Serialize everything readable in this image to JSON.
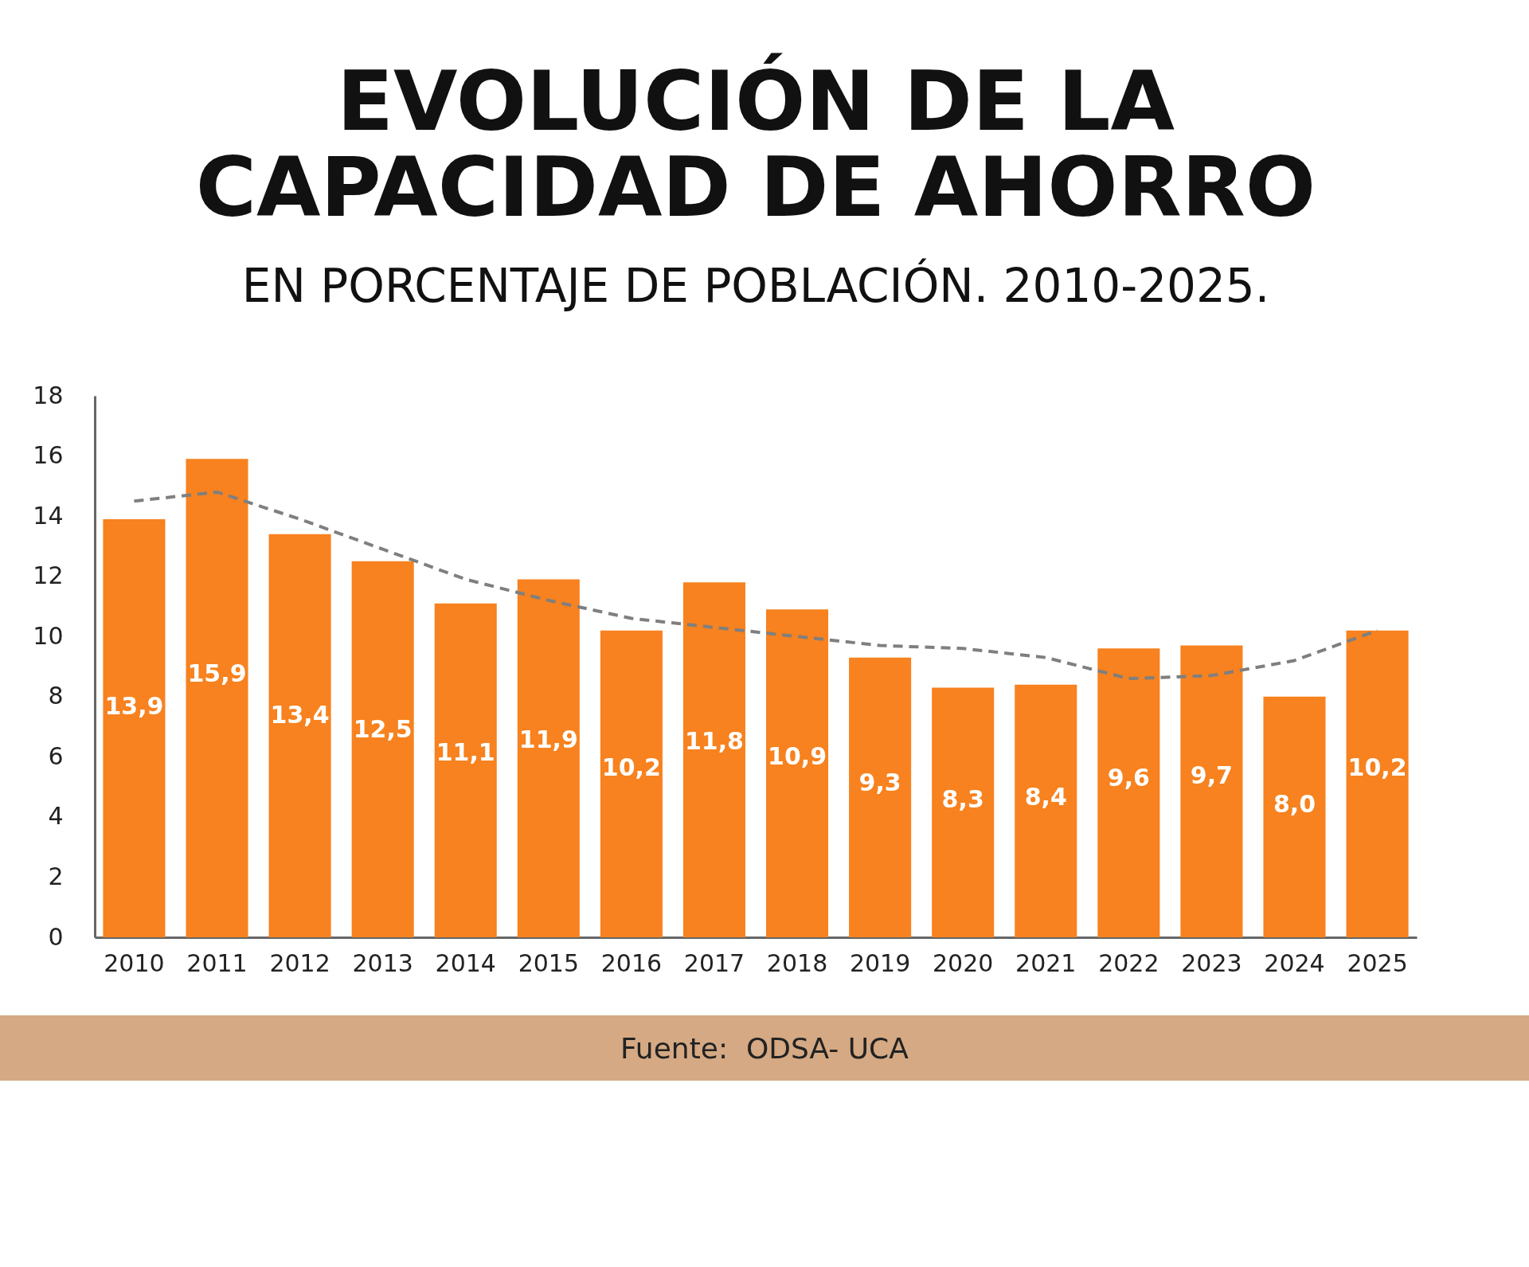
{
  "chart_data": {
    "type": "bar",
    "title": [
      "EVOLUCIÓN DE LA",
      "CAPACIDAD DE AHORRO"
    ],
    "subtitle": "EN PORCENTAJE DE POBLACIÓN. 2010-2025.",
    "categories": [
      "2010",
      "2011",
      "2012",
      "2013",
      "2014",
      "2015",
      "2016",
      "2017",
      "2018",
      "2019",
      "2020",
      "2021",
      "2022",
      "2023",
      "2024",
      "2025"
    ],
    "series": [
      {
        "color": "#f7821f",
        "values": [
          13.9,
          15.9,
          13.4,
          12.5,
          11.1,
          11.9,
          10.2,
          11.8,
          10.9,
          9.3,
          8.3,
          8.4,
          9.6,
          9.7,
          8.0,
          10.2
        ],
        "value_labels": [
          "13,9",
          "15,9",
          "13,4",
          "12,5",
          "11,1",
          "11,9",
          "10,2",
          "11,8",
          "10,9",
          "9,3",
          "8,3",
          "8,4",
          "9,6",
          "9,7",
          "8,0",
          "10,2"
        ]
      },
      {
        "type": "line",
        "color": "#7f7f7f",
        "line_style": "dashed",
        "values": [
          14.5,
          14.8,
          13.9,
          12.9,
          11.9,
          11.2,
          10.6,
          10.3,
          10.0,
          9.7,
          9.6,
          9.3,
          8.6,
          8.7,
          9.2,
          10.2
        ]
      }
    ],
    "ylim": [
      0,
      18
    ],
    "yticks": [
      0,
      2,
      4,
      6,
      8,
      10,
      12,
      14,
      16,
      18
    ],
    "annotations": [
      "Fuente:  ODSA- UCA"
    ]
  }
}
